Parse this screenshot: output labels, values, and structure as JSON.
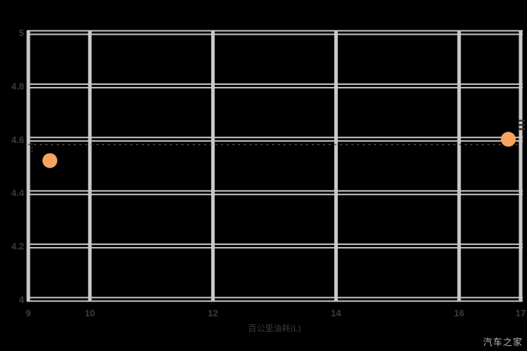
{
  "watermark": "汽车之家",
  "colors": {
    "background": "#000000",
    "grid": "#c9c9c9",
    "tick_label": "#3b3b3b",
    "axis_title": "#3b3b3b",
    "point_fill": "#F8A45E",
    "dashed_ref": "#4f4f4f",
    "edge_marks": "#2e2e2e",
    "watermark": "#b7b7b7"
  },
  "chart_data": {
    "type": "scatter",
    "title": "",
    "xlabel": "百公里油耗(L)",
    "ylabel": "",
    "xlim": [
      9,
      17
    ],
    "ylim": [
      4,
      5
    ],
    "x_ticks": [
      9,
      10,
      12,
      14,
      16,
      17
    ],
    "x_tick_labels": [
      "9",
      "10",
      "12",
      "14",
      "16",
      "17"
    ],
    "y_ticks": [
      5,
      4.8,
      4.6,
      4.4,
      4.2,
      4
    ],
    "y_tick_labels": [
      "5",
      "4.8",
      "4.6",
      "4.4",
      "4.2",
      "4"
    ],
    "grid": true,
    "legend": "none",
    "points": [
      {
        "x": 9.35,
        "y": 4.52
      },
      {
        "x": 16.8,
        "y": 4.6
      }
    ],
    "reference_line_y": 4.58,
    "point_radius": 10.5
  }
}
